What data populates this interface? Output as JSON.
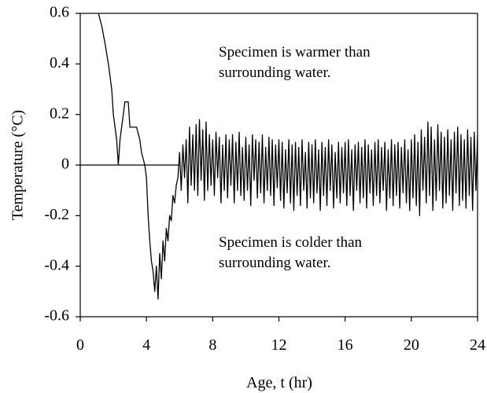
{
  "chart_data": {
    "type": "line",
    "xlabel": "Age, t (hr)",
    "ylabel": "Temperature (°C)",
    "annotations": [
      [
        "Specimen is warmer than",
        "surrounding water."
      ],
      [
        "Specimen is colder than",
        "surrounding water."
      ]
    ],
    "xlim": [
      0,
      24
    ],
    "xticks": [
      0,
      4,
      8,
      12,
      16,
      20,
      24
    ],
    "ylim": [
      -0.6,
      0.6
    ],
    "yticks": [
      -0.6,
      -0.4,
      -0.2,
      0,
      0.2,
      0.4,
      0.6
    ],
    "reference_line": {
      "y": 0,
      "x": [
        0,
        6
      ]
    },
    "x": [
      1.1,
      1.3,
      1.5,
      1.7,
      1.9,
      2.0,
      2.1,
      2.2,
      2.3,
      2.4,
      2.5,
      2.6,
      2.7,
      2.9,
      3.0,
      3.2,
      3.4,
      3.6,
      3.7,
      3.9,
      4.0,
      4.1,
      4.2,
      4.3,
      4.4,
      4.5,
      4.6,
      4.7,
      4.8,
      4.9,
      5.0,
      5.1,
      5.2,
      5.3,
      5.4,
      5.5,
      5.6,
      5.7,
      5.8,
      5.9,
      6.0,
      6.1,
      6.2,
      6.3,
      6.4,
      6.5,
      6.6,
      6.7,
      6.8,
      6.9,
      7.0,
      7.1,
      7.2,
      7.3,
      7.4,
      7.5,
      7.6,
      7.7,
      7.8,
      7.9,
      8.0,
      8.1,
      8.2,
      8.3,
      8.4,
      8.5,
      8.6,
      8.7,
      8.8,
      8.9,
      9.0,
      9.1,
      9.2,
      9.3,
      9.4,
      9.5,
      9.6,
      9.7,
      9.8,
      9.9,
      10.0,
      10.1,
      10.2,
      10.3,
      10.4,
      10.5,
      10.6,
      10.7,
      10.8,
      10.9,
      11.0,
      11.1,
      11.2,
      11.3,
      11.4,
      11.5,
      11.6,
      11.7,
      11.8,
      11.9,
      12.0,
      12.1,
      12.2,
      12.3,
      12.4,
      12.5,
      12.6,
      12.7,
      12.8,
      12.9,
      13.0,
      13.1,
      13.2,
      13.3,
      13.4,
      13.5,
      13.6,
      13.7,
      13.8,
      13.9,
      14.0,
      14.1,
      14.2,
      14.3,
      14.4,
      14.5,
      14.6,
      14.7,
      14.8,
      14.9,
      15.0,
      15.1,
      15.2,
      15.3,
      15.4,
      15.5,
      15.6,
      15.7,
      15.8,
      15.9,
      16.0,
      16.1,
      16.2,
      16.3,
      16.4,
      16.5,
      16.6,
      16.7,
      16.8,
      16.9,
      17.0,
      17.1,
      17.2,
      17.3,
      17.4,
      17.5,
      17.6,
      17.7,
      17.8,
      17.9,
      18.0,
      18.1,
      18.2,
      18.3,
      18.4,
      18.5,
      18.6,
      18.7,
      18.8,
      18.9,
      19.0,
      19.1,
      19.2,
      19.3,
      19.4,
      19.5,
      19.6,
      19.7,
      19.8,
      19.9,
      20.0,
      20.1,
      20.2,
      20.3,
      20.4,
      20.5,
      20.6,
      20.7,
      20.8,
      20.9,
      21.0,
      21.1,
      21.2,
      21.3,
      21.4,
      21.5,
      21.6,
      21.7,
      21.8,
      21.9,
      22.0,
      22.1,
      22.2,
      22.3,
      22.4,
      22.5,
      22.6,
      22.7,
      22.8,
      22.9,
      23.0,
      23.1,
      23.2,
      23.3,
      23.4,
      23.5,
      23.6,
      23.7,
      23.8,
      23.9,
      24.0
    ],
    "series": [
      {
        "color": "#000000",
        "values": [
          0.6,
          0.55,
          0.48,
          0.4,
          0.3,
          0.2,
          0.15,
          0.1,
          0.0,
          0.1,
          0.15,
          0.2,
          0.25,
          0.25,
          0.15,
          0.15,
          0.15,
          0.1,
          0.05,
          0.0,
          -0.05,
          -0.2,
          -0.3,
          -0.38,
          -0.42,
          -0.5,
          -0.4,
          -0.53,
          -0.35,
          -0.45,
          -0.3,
          -0.38,
          -0.25,
          -0.3,
          -0.2,
          -0.22,
          -0.12,
          -0.15,
          -0.08,
          -0.05,
          0.05,
          -0.1,
          0.08,
          -0.05,
          0.1,
          -0.15,
          0.15,
          -0.08,
          0.12,
          -0.1,
          0.16,
          -0.12,
          0.18,
          -0.06,
          0.14,
          -0.14,
          0.17,
          -0.1,
          0.12,
          -0.08,
          0.1,
          -0.12,
          0.13,
          -0.05,
          0.11,
          -0.15,
          0.08,
          -0.1,
          0.12,
          -0.13,
          0.1,
          -0.08,
          0.12,
          -0.15,
          0.09,
          -0.1,
          0.13,
          -0.12,
          0.07,
          -0.14,
          0.11,
          -0.1,
          0.08,
          -0.16,
          0.12,
          -0.06,
          0.1,
          -0.13,
          0.09,
          -0.11,
          0.12,
          -0.15,
          0.07,
          -0.1,
          0.11,
          -0.12,
          0.1,
          -0.16,
          0.08,
          -0.09,
          0.1,
          -0.14,
          0.09,
          -0.17,
          0.06,
          -0.11,
          0.1,
          -0.15,
          0.08,
          -0.18,
          0.09,
          -0.12,
          0.07,
          -0.16,
          0.1,
          -0.1,
          0.05,
          -0.17,
          0.09,
          -0.13,
          0.08,
          -0.15,
          0.1,
          -0.11,
          0.06,
          -0.18,
          0.09,
          -0.12,
          0.07,
          -0.16,
          0.1,
          -0.1,
          0.08,
          -0.17,
          0.05,
          -0.13,
          0.09,
          -0.15,
          0.07,
          -0.11,
          0.09,
          -0.16,
          0.1,
          -0.12,
          0.06,
          -0.18,
          0.08,
          -0.1,
          0.09,
          -0.15,
          0.07,
          -0.13,
          0.1,
          -0.17,
          0.08,
          -0.11,
          0.06,
          -0.16,
          0.09,
          -0.12,
          0.1,
          -0.15,
          0.07,
          -0.1,
          0.09,
          -0.18,
          0.06,
          -0.13,
          0.1,
          -0.16,
          0.08,
          -0.12,
          0.09,
          -0.17,
          0.07,
          -0.11,
          0.1,
          -0.15,
          0.06,
          -0.18,
          0.1,
          -0.13,
          0.12,
          -0.16,
          0.09,
          -0.2,
          0.14,
          -0.1,
          0.11,
          -0.15,
          0.17,
          -0.12,
          0.15,
          -0.18,
          0.1,
          -0.14,
          0.16,
          -0.1,
          0.13,
          -0.17,
          0.11,
          -0.15,
          0.14,
          -0.12,
          0.1,
          -0.18,
          0.13,
          -0.11,
          0.15,
          -0.16,
          0.12,
          -0.14,
          0.1,
          -0.17,
          0.14,
          -0.12,
          0.11,
          -0.18,
          0.13,
          -0.1,
          0.12
        ]
      }
    ]
  }
}
